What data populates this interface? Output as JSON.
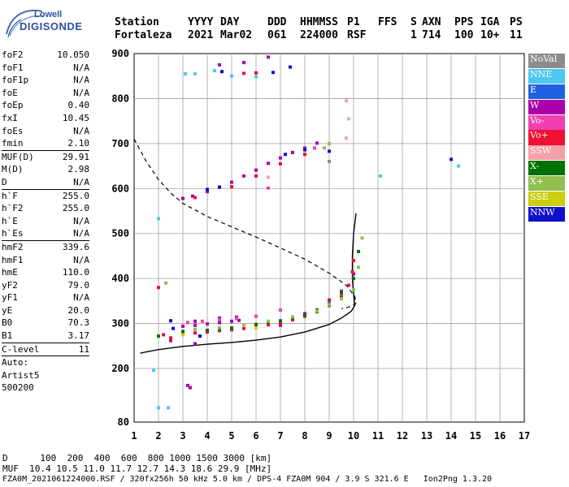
{
  "logo": {
    "line1": "Lowell",
    "line2": "DIGISONDE"
  },
  "header": {
    "labels": [
      "Station",
      "YYYY",
      "DAY",
      "DDD",
      "HHMMSS",
      "P1",
      "FFS",
      "S",
      "AXN",
      "PPS",
      "IGA",
      "PS"
    ],
    "values": [
      "Fortaleza",
      "2021",
      "Mar02",
      "061",
      "224000",
      "RSF",
      "",
      "1",
      "714",
      "100",
      "10+",
      "11"
    ]
  },
  "params": [
    {
      "name": "foF2",
      "value": "10.050"
    },
    {
      "name": "foF1",
      "value": "N/A"
    },
    {
      "name": "foF1p",
      "value": "N/A"
    },
    {
      "name": "foE",
      "value": "N/A"
    },
    {
      "name": "foEp",
      "value": "0.40"
    },
    {
      "name": "fxI",
      "value": "10.45"
    },
    {
      "name": "foEs",
      "value": "N/A"
    },
    {
      "name": "fmin",
      "value": "2.10"
    },
    {
      "sep": true
    },
    {
      "name": "MUF(D)",
      "value": "29.91"
    },
    {
      "name": "M(D)",
      "value": "2.98"
    },
    {
      "name": "D",
      "value": "N/A"
    },
    {
      "sep": true
    },
    {
      "name": "h`F",
      "value": "255.0"
    },
    {
      "name": "h`F2",
      "value": "255.0"
    },
    {
      "name": "h`E",
      "value": "N/A"
    },
    {
      "name": "h`Es",
      "value": "N/A"
    },
    {
      "sep": true
    },
    {
      "name": "hmF2",
      "value": "339.6"
    },
    {
      "name": "hmF1",
      "value": "N/A"
    },
    {
      "name": "hmE",
      "value": "110.0"
    },
    {
      "name": "yF2",
      "value": "79.0"
    },
    {
      "name": "yF1",
      "value": "N/A"
    },
    {
      "name": "yE",
      "value": "20.0"
    },
    {
      "name": "B0",
      "value": "70.3"
    },
    {
      "name": "B1",
      "value": "3.17"
    },
    {
      "sep": true
    },
    {
      "name": "C-level",
      "value": "11"
    },
    {
      "sep": true
    },
    {
      "text": "Auto:"
    },
    {
      "text": "Artist5"
    },
    {
      "text": "500200"
    }
  ],
  "legend": [
    {
      "label": "NoVal",
      "color": "#8c8c8c"
    },
    {
      "label": "NNE",
      "color": "#4dc8f0"
    },
    {
      "label": "E",
      "color": "#2060e0"
    },
    {
      "label": "W",
      "color": "#aa00aa"
    },
    {
      "label": "Vo-",
      "color": "#f040b0"
    },
    {
      "label": "Vo+",
      "color": "#ee1133"
    },
    {
      "label": "SSW",
      "color": "#f4a0a8"
    },
    {
      "label": "X-",
      "color": "#007000"
    },
    {
      "label": "X+",
      "color": "#90c050"
    },
    {
      "label": "SSE",
      "color": "#cccc10"
    },
    {
      "label": "NNW",
      "color": "#1010cc"
    }
  ],
  "footer": {
    "line1": "D      100  200  400  600  800 1000 1500 3000 [km]",
    "line2": "MUF  10.4 10.5 11.0 11.7 12.7 14.3 18.6 29.9 [MHz]",
    "line3": "FZA0M_2021061224000.RSF / 320fx256h 50 kHz 5.0 km / DPS-4 FZA0M 904 / 3.9 S 321.6 E   Ion2Png 1.3.20"
  },
  "chart_data": {
    "type": "scatter",
    "xlim": [
      1,
      17
    ],
    "ylim": [
      80,
      900
    ],
    "x_ticks": [
      "1",
      "2",
      "3",
      "4",
      "5",
      "6",
      "7",
      "8",
      "9",
      "10",
      "11",
      "12",
      "13",
      "14",
      "15",
      "16",
      "17"
    ],
    "y_ticks": [
      "80",
      "200",
      "300",
      "400",
      "500",
      "600",
      "700",
      "800",
      "900"
    ],
    "grid": true,
    "series": [
      {
        "name": "W",
        "color": "#aa00aa",
        "points": [
          [
            3.0,
            578
          ],
          [
            3.4,
            583
          ],
          [
            4.0,
            593
          ],
          [
            4.5,
            603
          ],
          [
            5.0,
            614
          ],
          [
            5.5,
            628
          ],
          [
            6.0,
            641
          ],
          [
            6.5,
            656
          ],
          [
            7.0,
            668
          ],
          [
            7.5,
            680
          ],
          [
            8.0,
            690
          ],
          [
            8.5,
            701
          ],
          [
            3.0,
            294
          ],
          [
            3.5,
            296
          ],
          [
            4.0,
            299
          ],
          [
            4.5,
            302
          ],
          [
            5.0,
            305
          ],
          [
            5.3,
            307
          ],
          [
            3.5,
            305
          ],
          [
            4.5,
            312
          ],
          [
            5.2,
            314
          ],
          [
            7.0,
            296
          ],
          [
            8.0,
            322
          ],
          [
            9.0,
            352
          ],
          [
            9.5,
            372
          ],
          [
            10.0,
            410
          ],
          [
            2.5,
            262
          ],
          [
            3.5,
            255
          ],
          [
            4.5,
            875
          ],
          [
            5.5,
            880
          ],
          [
            6.5,
            892
          ],
          [
            3.3,
            157
          ],
          [
            3.2,
            162
          ]
        ]
      },
      {
        "name": "Vo+",
        "color": "#ee1133",
        "points": [
          [
            2.2,
            275
          ],
          [
            3.0,
            277
          ],
          [
            3.5,
            279
          ],
          [
            4.0,
            281
          ],
          [
            4.5,
            284
          ],
          [
            5.0,
            286
          ],
          [
            5.5,
            289
          ],
          [
            6.0,
            293
          ],
          [
            6.5,
            297
          ],
          [
            7.0,
            302
          ],
          [
            7.5,
            308
          ],
          [
            8.0,
            316
          ],
          [
            8.5,
            326
          ],
          [
            9.0,
            340
          ],
          [
            9.5,
            360
          ],
          [
            9.8,
            385
          ],
          [
            9.95,
            415
          ],
          [
            10.0,
            440
          ],
          [
            3.5,
            580
          ],
          [
            5.0,
            604
          ],
          [
            6.0,
            628
          ],
          [
            7.0,
            655
          ],
          [
            8.0,
            676
          ],
          [
            2.0,
            380
          ],
          [
            5.5,
            856
          ],
          [
            6.0,
            857
          ],
          [
            2.5,
            268
          ]
        ]
      },
      {
        "name": "X-",
        "color": "#007000",
        "points": [
          [
            3.0,
            282
          ],
          [
            4.0,
            285
          ],
          [
            5.0,
            290
          ],
          [
            6.0,
            298
          ],
          [
            7.0,
            306
          ],
          [
            8.0,
            318
          ],
          [
            8.5,
            330
          ],
          [
            9.0,
            344
          ],
          [
            9.5,
            368
          ],
          [
            10.0,
            400
          ],
          [
            10.2,
            460
          ],
          [
            2.0,
            272
          ],
          [
            4.5,
            288
          ],
          [
            6.5,
            303
          ],
          [
            7.5,
            312
          ]
        ]
      },
      {
        "name": "X+",
        "color": "#90c050",
        "points": [
          [
            3.5,
            287
          ],
          [
            4.5,
            291
          ],
          [
            5.5,
            297
          ],
          [
            6.5,
            305
          ],
          [
            7.5,
            315
          ],
          [
            8.5,
            328
          ],
          [
            9.0,
            342
          ],
          [
            9.5,
            355
          ],
          [
            10.0,
            375
          ],
          [
            10.2,
            425
          ],
          [
            10.35,
            490
          ],
          [
            2.3,
            390
          ],
          [
            8.8,
            690
          ],
          [
            9.0,
            700
          ]
        ]
      },
      {
        "name": "NNE",
        "color": "#4dc8f0",
        "points": [
          [
            2.0,
            112
          ],
          [
            2.4,
            112
          ],
          [
            1.8,
            196
          ],
          [
            2.0,
            533
          ],
          [
            3.1,
            855
          ],
          [
            3.5,
            855
          ],
          [
            4.3,
            862
          ],
          [
            5.0,
            850
          ],
          [
            6.0,
            849
          ],
          [
            11.1,
            628
          ],
          [
            14.3,
            650
          ]
        ]
      },
      {
        "name": "NNW",
        "color": "#1010cc",
        "points": [
          [
            7.2,
            676
          ],
          [
            8.0,
            686
          ],
          [
            9.0,
            683
          ],
          [
            6.7,
            858
          ],
          [
            7.4,
            870
          ],
          [
            4.6,
            860
          ],
          [
            3.7,
            272
          ],
          [
            2.6,
            289
          ],
          [
            2.5,
            306
          ],
          [
            4.0,
            598
          ],
          [
            4.5,
            603
          ],
          [
            14.0,
            665
          ]
        ]
      },
      {
        "name": "Vo-",
        "color": "#f040b0",
        "points": [
          [
            3.2,
            302
          ],
          [
            3.8,
            305
          ],
          [
            4.5,
            308
          ],
          [
            5.2,
            311
          ],
          [
            6.0,
            316
          ],
          [
            7.0,
            330
          ],
          [
            6.5,
            601
          ],
          [
            8.4,
            690
          ]
        ]
      },
      {
        "name": "SSW",
        "color": "#f4a0a8",
        "points": [
          [
            9.7,
            795
          ],
          [
            9.8,
            755
          ],
          [
            9.7,
            712
          ],
          [
            6.5,
            625
          ]
        ]
      },
      {
        "name": "SSE",
        "color": "#cccc10",
        "points": [
          [
            3.0,
            275
          ],
          [
            6.0,
            290
          ]
        ]
      },
      {
        "name": "NoVal",
        "color": "#8c8c8c",
        "points": [
          [
            9.0,
            660
          ]
        ]
      }
    ],
    "profile_solid": [
      [
        1.25,
        234
      ],
      [
        1.5,
        237
      ],
      [
        2,
        242
      ],
      [
        3,
        249
      ],
      [
        4,
        254
      ],
      [
        5,
        258
      ],
      [
        6,
        263
      ],
      [
        7,
        270
      ],
      [
        8,
        281
      ],
      [
        9,
        298
      ],
      [
        9.5,
        312
      ],
      [
        9.9,
        327
      ],
      [
        10.05,
        340
      ],
      [
        10.0,
        365
      ],
      [
        9.95,
        400
      ],
      [
        9.95,
        450
      ],
      [
        10.0,
        500
      ],
      [
        10.1,
        545
      ]
    ],
    "profile_dashed": [
      [
        1.0,
        710
      ],
      [
        1.5,
        660
      ],
      [
        2,
        620
      ],
      [
        2.5,
        590
      ],
      [
        3,
        567
      ],
      [
        4,
        538
      ],
      [
        5,
        515
      ],
      [
        6,
        492
      ],
      [
        7,
        468
      ],
      [
        8,
        443
      ],
      [
        9,
        412
      ],
      [
        9.7,
        385
      ],
      [
        10.05,
        360
      ],
      [
        10.1,
        345
      ],
      [
        9.9,
        338
      ],
      [
        9.5,
        333
      ]
    ]
  }
}
